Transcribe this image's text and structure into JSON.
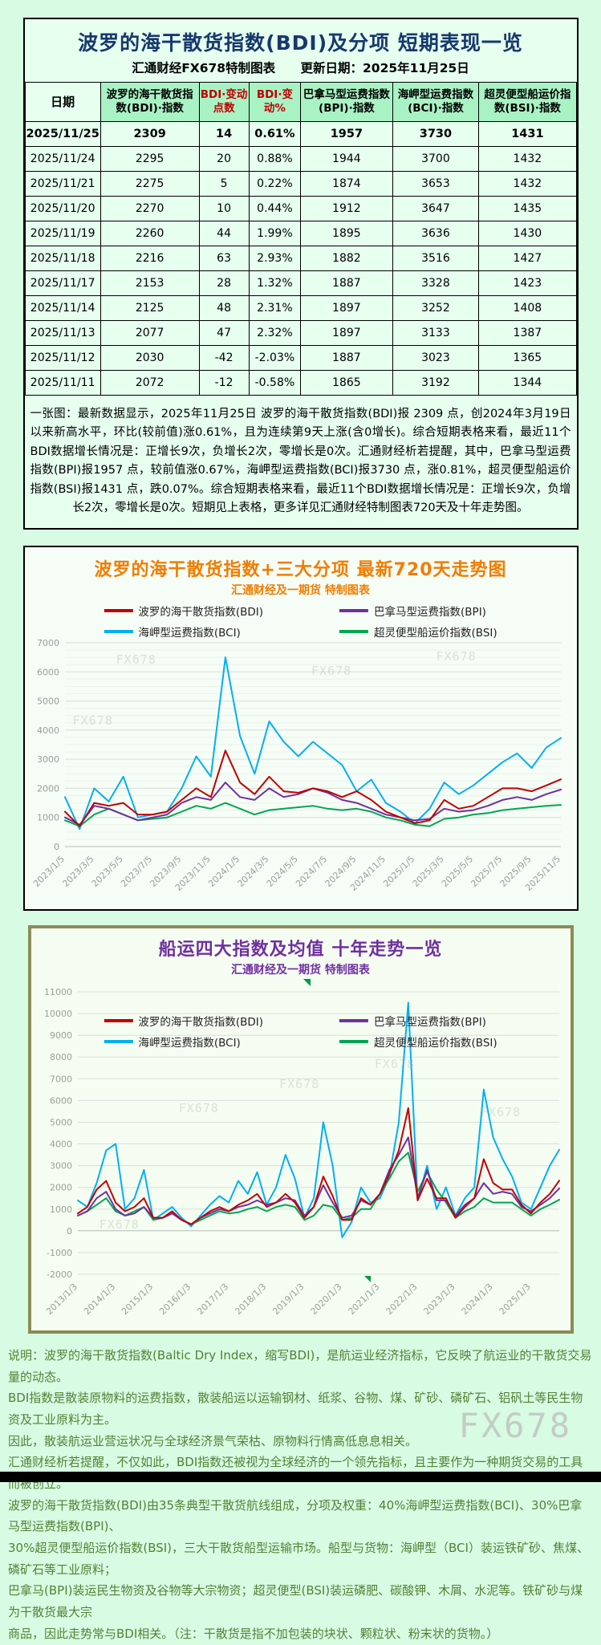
{
  "page": {
    "watermark": "FX678"
  },
  "colors": {
    "bdi": "#c00000",
    "bpi": "#7030a0",
    "bci": "#00b0f0",
    "bsi": "#00a651",
    "chart1_title": "#f07d00",
    "chart2_title": "#7030a0",
    "table_title": "#17386e",
    "header_red": "#c00000",
    "footer_green": "#538135",
    "header_cell_green": "#a9f2c4"
  },
  "table_section": {
    "title": "波罗的海干散货指数(BDI)及分项 短期表现一览",
    "subtitle_left": "汇通财经FX678特制图表",
    "subtitle_right": "更新日期：2025年11月25日",
    "columns": [
      {
        "label": "日期"
      },
      {
        "label": "波罗的海干散货指数(BDI)·指数"
      },
      {
        "label": "BDI·变动点数",
        "red": true
      },
      {
        "label": "BDI·变动%",
        "red": true
      },
      {
        "label": "巴拿马型运费指数(BPI)·指数"
      },
      {
        "label": "海岬型运费指数(BCI)·指数"
      },
      {
        "label": "超灵便型船运价指数(BSI)·指数"
      }
    ],
    "rows": [
      [
        "2025/11/25",
        "2309",
        "14",
        "0.61%",
        "1957",
        "3730",
        "1431"
      ],
      [
        "2025/11/24",
        "2295",
        "20",
        "0.88%",
        "1944",
        "3700",
        "1432"
      ],
      [
        "2025/11/21",
        "2275",
        "5",
        "0.22%",
        "1874",
        "3653",
        "1432"
      ],
      [
        "2025/11/20",
        "2270",
        "10",
        "0.44%",
        "1912",
        "3647",
        "1435"
      ],
      [
        "2025/11/19",
        "2260",
        "44",
        "1.99%",
        "1895",
        "3636",
        "1430"
      ],
      [
        "2025/11/18",
        "2216",
        "63",
        "2.93%",
        "1882",
        "3516",
        "1427"
      ],
      [
        "2025/11/17",
        "2153",
        "28",
        "1.32%",
        "1887",
        "3328",
        "1423"
      ],
      [
        "2025/11/14",
        "2125",
        "48",
        "2.31%",
        "1897",
        "3252",
        "1408"
      ],
      [
        "2025/11/13",
        "2077",
        "47",
        "2.32%",
        "1897",
        "3133",
        "1387"
      ],
      [
        "2025/11/12",
        "2030",
        "-42",
        "-2.03%",
        "1887",
        "3023",
        "1365"
      ],
      [
        "2025/11/11",
        "2072",
        "-12",
        "-0.58%",
        "1865",
        "3192",
        "1344"
      ]
    ],
    "summary": "一张图：最新数据显示，2025年11月25日 波罗的海干散货指数(BDI)报 2309 点，创2024年3月19日以来新高水平，环比(较前值)涨0.61%，且为连续第9天上涨(含0增长)。综合短期表格来看，最近11个BDI数据增长情况是：正增长9次，负增长2次，零增长是0次。汇通财经析若提醒，其中，巴拿马型运费指数(BPI)报1957 点，较前值涨0.67%，海岬型运费指数(BCI)报3730 点，涨0.81%，超灵便型船运价指数(BSI)报1431 点，跌0.07%。综合短期表格来看，最近11个BDI数据增长情况是：正增长9次，负增长2次，零增长是0次。短期见上表格，更多详见汇通财经特制图表720天及十年走势图。"
  },
  "chart_data": [
    {
      "type": "line",
      "title": "波罗的海干散货指数+三大分项  最新720天走势图",
      "subtitle": "汇通财经及一期货 特制图表",
      "ylim": [
        0,
        7000
      ],
      "ytick_step": 1000,
      "grid": true,
      "legend_position": "top",
      "points_per_label": 2,
      "x_labels": [
        "2023/1/5",
        "2023/3/5",
        "2023/5/5",
        "2023/7/5",
        "2023/9/5",
        "2023/11/5",
        "2024/1/5",
        "2024/3/5",
        "2024/5/5",
        "2024/7/5",
        "2024/9/5",
        "2024/11/5",
        "2025/1/5",
        "2025/3/5",
        "2025/5/5",
        "2025/7/5",
        "2025/9/5",
        "2025/11/5"
      ],
      "x_note": "monthly samples 2023/1 - 2025/11, latest values match table: BDI 2309, BPI 1957, BCI 3730, BSI 1431",
      "series": [
        {
          "name": "波罗的海干散货指数(BDI)",
          "color": "#c00000",
          "values": [
            1200,
            700,
            1500,
            1400,
            1500,
            1100,
            1100,
            1200,
            1600,
            2000,
            1700,
            3300,
            2200,
            1800,
            2400,
            1900,
            1850,
            2000,
            1900,
            1700,
            1900,
            1600,
            1200,
            1000,
            800,
            900,
            1600,
            1300,
            1400,
            1700,
            2000,
            2000,
            1900,
            2100,
            2309
          ]
        },
        {
          "name": "巴拿马型运费指数(BPI)",
          "color": "#7030a0",
          "values": [
            1000,
            750,
            1400,
            1300,
            1100,
            900,
            1000,
            1100,
            1500,
            1700,
            1600,
            2200,
            1700,
            1600,
            2000,
            1700,
            1800,
            2000,
            1850,
            1600,
            1500,
            1300,
            1100,
            1000,
            900,
            950,
            1300,
            1200,
            1250,
            1400,
            1600,
            1700,
            1600,
            1800,
            1957
          ]
        },
        {
          "name": "海岬型运费指数(BCI)",
          "color": "#00b0f0",
          "values": [
            1700,
            600,
            2000,
            1550,
            2400,
            1000,
            1100,
            1200,
            2000,
            3100,
            2400,
            6500,
            3800,
            2500,
            4300,
            3600,
            3100,
            3600,
            3200,
            2800,
            1900,
            2300,
            1500,
            1200,
            800,
            1300,
            2200,
            1800,
            2100,
            2500,
            2900,
            3200,
            2700,
            3400,
            3730
          ]
        },
        {
          "name": "超灵便型船运价指数(BSI)",
          "color": "#00a651",
          "values": [
            900,
            700,
            1100,
            1300,
            1100,
            900,
            950,
            1000,
            1200,
            1400,
            1300,
            1500,
            1300,
            1100,
            1250,
            1300,
            1350,
            1400,
            1300,
            1250,
            1300,
            1200,
            1000,
            900,
            750,
            700,
            950,
            1000,
            1100,
            1150,
            1250,
            1300,
            1350,
            1400,
            1431
          ]
        }
      ]
    },
    {
      "type": "line",
      "title": "船运四大指数及均值 十年走势一览",
      "subtitle": "汇通财经及一期货 特制图表",
      "ylim": [
        -2000,
        11000
      ],
      "ytick_step": 1000,
      "grid": true,
      "legend_position": "top",
      "points_per_label": 4,
      "x_labels": [
        "2013/1/3",
        "2014/1/3",
        "2015/1/3",
        "2016/1/3",
        "2017/1/3",
        "2018/1/3",
        "2019/1/3",
        "2020/1/3",
        "2021/1/3",
        "2022/1/3",
        "2023/1/3",
        "2024/1/3",
        "2025/1/3"
      ],
      "x_note": "quarterly samples 2013-2025; BCI peak ~10500 in 2021Q4, BCI dip below 0 in 2020Q1, BDI peak ~5650 in 2021",
      "series": [
        {
          "name": "波罗的海干散货指数(BDI)",
          "color": "#c00000",
          "values": [
            800,
            1100,
            1900,
            2300,
            1300,
            900,
            1100,
            1500,
            600,
            600,
            900,
            500,
            300,
            600,
            900,
            1100,
            900,
            1200,
            1400,
            1700,
            1100,
            1300,
            1700,
            1300,
            600,
            1100,
            2500,
            1600,
            500,
            500,
            1500,
            1200,
            1700,
            2600,
            3700,
            5650,
            1400,
            2400,
            1500,
            1500,
            600,
            1100,
            1500,
            3300,
            2200,
            1900,
            1900,
            1200,
            800,
            1300,
            1700,
            2309
          ]
        },
        {
          "name": "巴拿马型运费指数(BPI)",
          "color": "#7030a0",
          "values": [
            700,
            900,
            1500,
            1800,
            1000,
            700,
            800,
            1100,
            600,
            600,
            800,
            500,
            300,
            600,
            800,
            1000,
            900,
            1100,
            1200,
            1400,
            1200,
            1300,
            1500,
            1400,
            700,
            1100,
            2100,
            1300,
            600,
            700,
            1400,
            1200,
            1700,
            2800,
            3500,
            4300,
            1500,
            2800,
            1400,
            1400,
            700,
            1200,
            1500,
            2200,
            1700,
            1800,
            1700,
            1100,
            900,
            1200,
            1500,
            1957
          ]
        },
        {
          "name": "海岬型运费指数(BCI)",
          "color": "#00b0f0",
          "values": [
            1400,
            1100,
            2200,
            3700,
            4000,
            1000,
            1500,
            2800,
            500,
            800,
            1100,
            600,
            200,
            700,
            1200,
            1600,
            1300,
            2300,
            1700,
            2700,
            1200,
            2000,
            3500,
            2400,
            600,
            1500,
            5000,
            3000,
            -300,
            400,
            2000,
            1300,
            1500,
            2500,
            5000,
            10500,
            1400,
            3000,
            1000,
            2000,
            700,
            1500,
            2000,
            6500,
            4300,
            3300,
            2500,
            1300,
            1000,
            2000,
            3000,
            3730
          ]
        },
        {
          "name": "超灵便型船运价指数(BSI)",
          "color": "#00a651",
          "values": [
            700,
            900,
            1200,
            1500,
            900,
            700,
            900,
            1100,
            500,
            600,
            800,
            500,
            300,
            500,
            700,
            900,
            800,
            850,
            1000,
            1100,
            900,
            1100,
            1200,
            1100,
            500,
            700,
            1200,
            1100,
            500,
            600,
            1000,
            1000,
            1700,
            2400,
            3200,
            3600,
            1800,
            2700,
            1900,
            1300,
            600,
            900,
            1100,
            1500,
            1300,
            1300,
            1300,
            1000,
            700,
            1000,
            1200,
            1431
          ]
        }
      ]
    }
  ],
  "footer": {
    "lines": [
      "说明：波罗的海干散货指数(Baltic Dry Index，缩写BDI)，是航运业经济指标，它反映了航运业的干散货交易量的动态。",
      "BDI指数是散装原物料的运费指数，散装船运以运输钢材、纸浆、谷物、煤、矿砂、磷矿石、铝矾土等民生物资及工业原料为主。",
      "因此，散装航运业营运状况与全球经济景气荣枯、原物料行情高低息息相关。",
      "汇通财经析若提醒，不仅如此，BDI指数还被视为全球经济的一个领先指标，且主要作为一种期货交易的工具而被创立。",
      "波罗的海干散货指数(BDI)由35条典型干散货航线组成，分项及权重：40%海岬型运费指数(BCI)、30%巴拿马型运费指数(BPI)、",
      "30%超灵便型船运价指数(BSI)，三大干散货船型运输市场。船型与货物：海岬型（BCI）装运铁矿砂、焦煤、磷矿石等工业原料；",
      "巴拿马(BPI)装运民生物资及谷物等大宗物资；超灵便型(BSI)装运磷肥、碳酸钾、木屑、水泥等。铁矿砂与煤为干散货最大宗",
      "商品，因此走势常与BDI相关。（注：干散货是指不加包装的块状、颗粒状、粉末状的货物。）"
    ]
  }
}
